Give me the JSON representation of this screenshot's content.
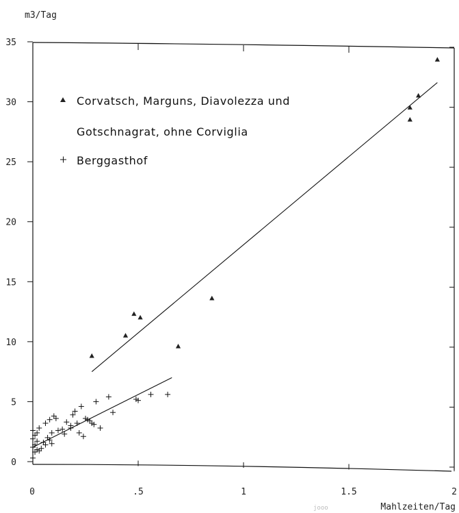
{
  "chart_data": {
    "type": "scatter",
    "ylabel": "m3/Tag",
    "xlabel": "Mahlzeiten/Tag",
    "xlim": [
      0,
      2
    ],
    "ylim": [
      0,
      35
    ],
    "x_tick_labels": [
      "0",
      ".5",
      "1",
      "1.5",
      "2"
    ],
    "y_tick_labels": [
      "0",
      "5",
      "10",
      "15",
      "20",
      "25",
      "30",
      "35"
    ],
    "x_tick_values": [
      0,
      0.5,
      1,
      1.5,
      2
    ],
    "y_tick_values": [
      0,
      5,
      10,
      15,
      20,
      25,
      30,
      35
    ],
    "grid": false,
    "legend_position": "top-left",
    "legend": [
      {
        "marker": "triangle",
        "lines": [
          "Corvatsch, Marguns, Diavolezza und",
          "Gotschnagrat, ohne Corviglia"
        ]
      },
      {
        "marker": "plus",
        "lines": [
          "Berggasthof"
        ]
      }
    ],
    "series": [
      {
        "marker": "triangle",
        "points": [
          [
            0.28,
            8.8
          ],
          [
            0.44,
            10.5
          ],
          [
            0.48,
            12.3
          ],
          [
            0.51,
            12.0
          ],
          [
            0.69,
            9.6
          ],
          [
            0.85,
            13.6
          ],
          [
            1.79,
            28.5
          ],
          [
            1.79,
            29.5
          ],
          [
            1.83,
            30.5
          ],
          [
            1.92,
            33.5
          ]
        ],
        "fit": [
          [
            0.28,
            7.5
          ],
          [
            1.92,
            31.6
          ]
        ]
      },
      {
        "marker": "plus",
        "points": [
          [
            0.0,
            0.3
          ],
          [
            0.01,
            0.8
          ],
          [
            0.0,
            1.2
          ],
          [
            0.01,
            1.4
          ],
          [
            0.02,
            1.0
          ],
          [
            0.03,
            0.9
          ],
          [
            0.0,
            1.9
          ],
          [
            0.01,
            2.2
          ],
          [
            0.02,
            2.4
          ],
          [
            0.0,
            2.6
          ],
          [
            0.03,
            2.8
          ],
          [
            0.02,
            1.7
          ],
          [
            0.04,
            1.1
          ],
          [
            0.05,
            1.6
          ],
          [
            0.06,
            1.4
          ],
          [
            0.07,
            2.0
          ],
          [
            0.08,
            1.8
          ],
          [
            0.09,
            1.5
          ],
          [
            0.06,
            3.2
          ],
          [
            0.08,
            3.5
          ],
          [
            0.1,
            3.8
          ],
          [
            0.11,
            3.6
          ],
          [
            0.09,
            2.4
          ],
          [
            0.12,
            2.6
          ],
          [
            0.14,
            2.7
          ],
          [
            0.15,
            2.3
          ],
          [
            0.16,
            3.3
          ],
          [
            0.18,
            3.0
          ],
          [
            0.18,
            2.8
          ],
          [
            0.19,
            3.9
          ],
          [
            0.2,
            4.2
          ],
          [
            0.21,
            3.2
          ],
          [
            0.22,
            2.4
          ],
          [
            0.23,
            4.6
          ],
          [
            0.24,
            2.1
          ],
          [
            0.25,
            3.6
          ],
          [
            0.26,
            3.5
          ],
          [
            0.27,
            3.4
          ],
          [
            0.28,
            3.2
          ],
          [
            0.29,
            3.1
          ],
          [
            0.3,
            5.0
          ],
          [
            0.32,
            2.8
          ],
          [
            0.36,
            5.4
          ],
          [
            0.38,
            4.1
          ],
          [
            0.49,
            5.2
          ],
          [
            0.5,
            5.1
          ],
          [
            0.56,
            5.6
          ],
          [
            0.64,
            5.6
          ]
        ],
        "fit": [
          [
            0.0,
            1.2
          ],
          [
            0.66,
            7.0
          ]
        ]
      }
    ]
  },
  "page": {
    "corner_stamp": "jooo"
  }
}
